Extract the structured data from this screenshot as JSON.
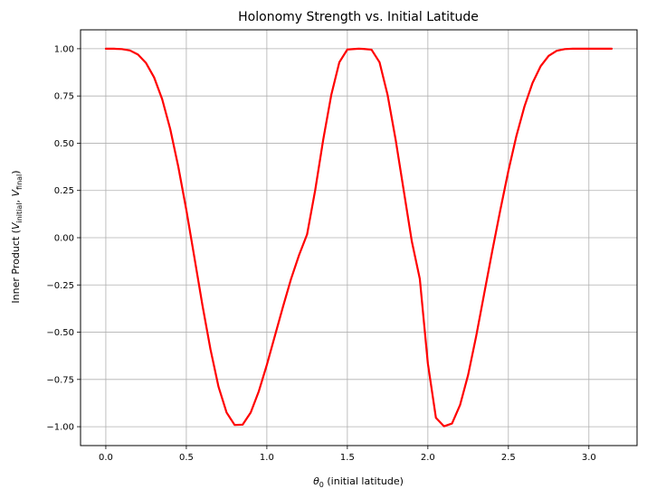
{
  "chart_data": {
    "type": "line",
    "title": "Holonomy Strength vs. Initial Latitude",
    "xlabel": {
      "theta": "θ",
      "sub": "0",
      "text": " (initial latitude)"
    },
    "ylabel": {
      "pre": "Inner Product (",
      "v1": "V",
      "sub1": "initial",
      "mid": ", ",
      "v2": "V",
      "sub2": "final",
      "post": ")"
    },
    "xlim": [
      -0.157,
      3.299
    ],
    "ylim": [
      -1.1,
      1.1
    ],
    "xticks": [
      0.0,
      0.5,
      1.0,
      1.5,
      2.0,
      2.5,
      3.0
    ],
    "xtick_labels": [
      "0.0",
      "0.5",
      "1.0",
      "1.5",
      "2.0",
      "2.5",
      "3.0"
    ],
    "yticks": [
      1.0,
      0.75,
      0.5,
      0.25,
      0.0,
      -0.25,
      -0.5,
      -0.75,
      -1.0
    ],
    "ytick_labels": [
      "1.00",
      "0.75",
      "0.50",
      "0.25",
      "0.00",
      "−0.25",
      "−0.50",
      "−0.75",
      "−1.00"
    ],
    "grid": true,
    "series": [
      {
        "name": "inner product",
        "color": "#ff0000",
        "formula": "cos(2*pi*cos(theta0))",
        "x": [
          0.0,
          0.05,
          0.1,
          0.15,
          0.2,
          0.25,
          0.3,
          0.35,
          0.4,
          0.45,
          0.5,
          0.55,
          0.6,
          0.65,
          0.7,
          0.75,
          0.8,
          0.85,
          0.9,
          0.95,
          1.0,
          1.05,
          1.1,
          1.15,
          1.2,
          1.25,
          1.3,
          1.35,
          1.4,
          1.45,
          1.5,
          1.55,
          1.5708,
          1.6,
          1.65,
          1.7,
          1.75,
          1.8,
          1.85,
          1.9,
          1.95,
          2.0,
          2.05,
          2.1,
          2.15,
          2.2,
          2.25,
          2.3,
          2.35,
          2.4,
          2.45,
          2.5,
          2.55,
          2.6,
          2.65,
          2.7,
          2.75,
          2.8,
          2.85,
          2.9,
          2.95,
          3.0,
          3.05,
          3.1,
          3.1416
        ],
        "y": [
          1.0,
          1.0,
          0.998,
          0.991,
          0.969,
          0.924,
          0.848,
          0.733,
          0.575,
          0.376,
          0.147,
          -0.104,
          -0.357,
          -0.591,
          -0.789,
          -0.925,
          -0.991,
          -0.989,
          -0.925,
          -0.813,
          -0.673,
          -0.519,
          -0.366,
          -0.219,
          -0.092,
          0.018,
          0.25,
          0.518,
          0.755,
          0.928,
          0.996,
          0.999,
          1.0,
          0.999,
          0.995,
          0.928,
          0.755,
          0.518,
          0.25,
          -0.018,
          -0.218,
          -0.666,
          -0.953,
          -0.998,
          -0.983,
          -0.885,
          -0.726,
          -0.521,
          -0.295,
          -0.07,
          0.147,
          0.354,
          0.539,
          0.695,
          0.819,
          0.907,
          0.962,
          0.989,
          0.998,
          1.0,
          1.0,
          1.0,
          1.0,
          1.0,
          1.0
        ]
      }
    ]
  }
}
